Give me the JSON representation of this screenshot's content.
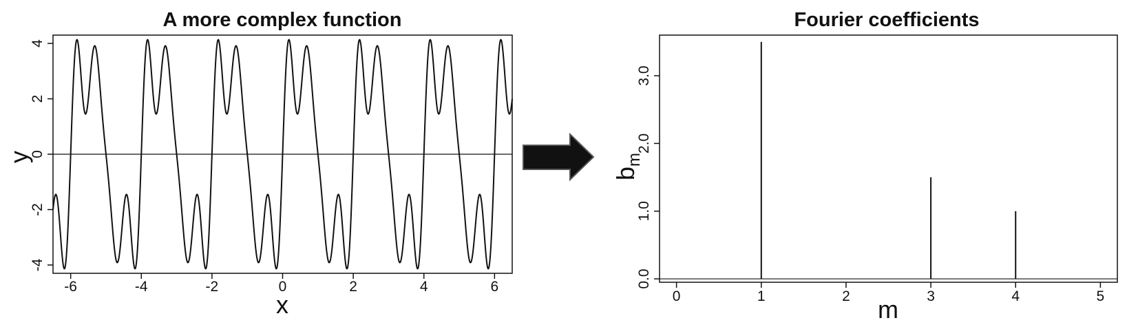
{
  "chart_data": [
    {
      "type": "line",
      "title": "A more complex function",
      "xlabel": "x",
      "ylabel": "y",
      "xlim": [
        -6.5,
        6.5
      ],
      "ylim": [
        -4.3,
        4.3
      ],
      "xticks": [
        -6,
        -4,
        -2,
        0,
        2,
        4,
        6
      ],
      "xtick_labels": [
        "-6",
        "-4",
        "-2",
        "0",
        "2",
        "4",
        "6"
      ],
      "yticks": [
        -4,
        -2,
        0,
        2,
        4
      ],
      "ytick_labels": [
        "-4",
        "-2",
        "0",
        "2",
        "4"
      ],
      "reference_line_y": 0,
      "function": "y = 3.5 sin(πx) + 1.5 sin(3πx) + 1.0 sin(4πx)",
      "grid": false
    },
    {
      "type": "bar",
      "title": "Fourier coefficients",
      "xlabel": "m",
      "ylabel": "b",
      "ylabel_subscript": "m",
      "x": [
        1,
        3,
        4
      ],
      "values": [
        3.5,
        1.5,
        1.0
      ],
      "xlim": [
        -0.2,
        5.2
      ],
      "ylim": [
        -0.05,
        3.6
      ],
      "xticks": [
        0,
        1,
        2,
        3,
        4,
        5
      ],
      "xtick_labels": [
        "0",
        "1",
        "2",
        "3",
        "4",
        "5"
      ],
      "yticks": [
        0,
        1,
        2,
        3
      ],
      "ytick_labels": [
        "0.0",
        "1.0",
        "2.0",
        "3.0"
      ],
      "reference_line_y": 0,
      "grid": false
    }
  ],
  "arrow_icon": "right-arrow-icon",
  "colors": {
    "line": "#111111",
    "arrow": "#111111",
    "background": "#ffffff"
  }
}
